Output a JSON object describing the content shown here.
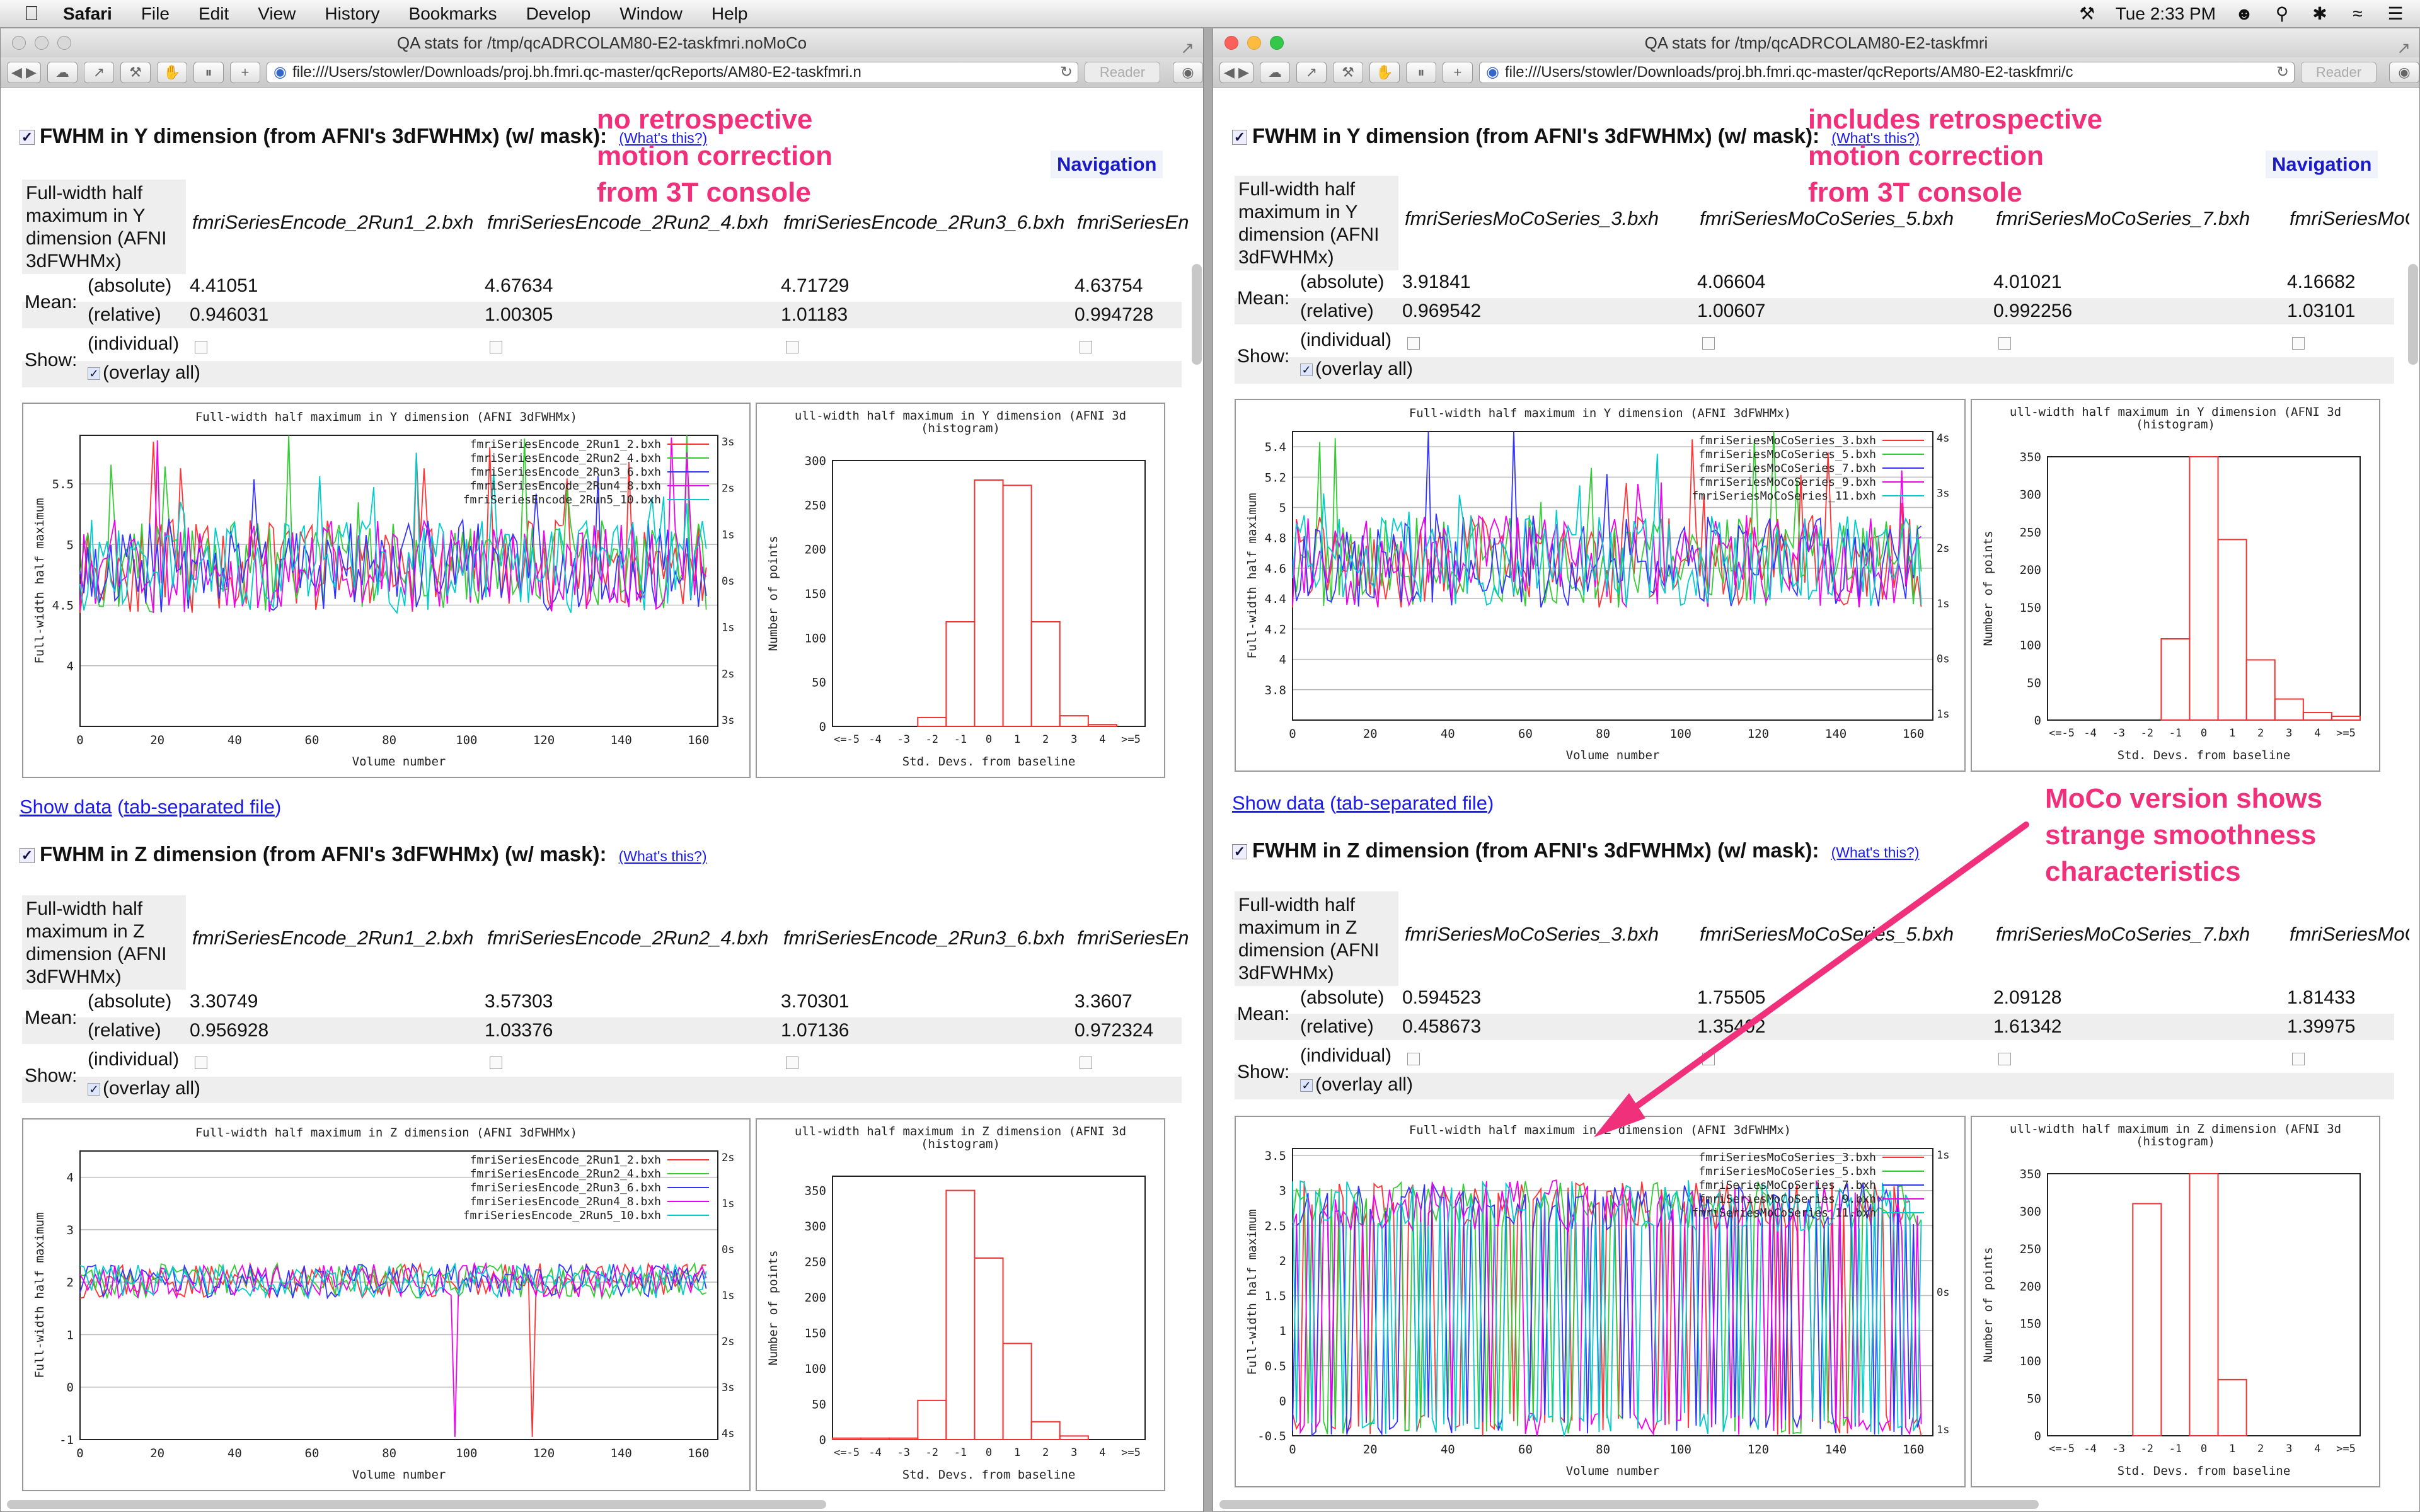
{
  "menubar": {
    "app": "Safari",
    "items": [
      "File",
      "Edit",
      "View",
      "History",
      "Bookmarks",
      "Develop",
      "Window",
      "Help"
    ],
    "clock": "Tue 2:33 PM"
  },
  "left": {
    "title_prefix": "QA stats for /tmp/qcADRCOL",
    "title_highlight": "AM80-E2-taskfmri.noMoCo",
    "url": "file:///Users/stowler/Downloads/proj.bh.fmri.qc-master/qcReports/AM80-E2-taskfmri.n",
    "reader": "Reader",
    "navigation": "Navigation",
    "annotation": [
      "no retrospective",
      "motion correction",
      "from 3T console"
    ],
    "y_head": "FWHM in Y dimension (from AFNI's 3dFWHMx) (w/ mask):",
    "z_head": "FWHM in Z dimension (from AFNI's 3dFWHMx) (w/ mask):",
    "whats_this": "(What's this?)",
    "y_label": [
      "Full-width half",
      "maximum in Y",
      "dimension (AFNI",
      "3dFWHMx)"
    ],
    "z_label": [
      "Full-width half",
      "maximum in Z",
      "dimension (AFNI",
      "3dFWHMx)"
    ],
    "files": [
      "fmriSeriesEncode_2Run1_2.bxh",
      "fmriSeriesEncode_2Run2_4.bxh",
      "fmriSeriesEncode_2Run3_6.bxh",
      "fmriSeriesEn"
    ],
    "y_abs": [
      "4.41051",
      "4.67634",
      "4.71729",
      "4.63754"
    ],
    "y_rel": [
      "0.946031",
      "1.00305",
      "1.01183",
      "0.994728"
    ],
    "z_abs": [
      "3.30749",
      "3.57303",
      "3.70301",
      "3.3607"
    ],
    "z_rel": [
      "0.956928",
      "1.03376",
      "1.07136",
      "0.972324"
    ],
    "show_data": "Show data",
    "tsv": "tab-separated file",
    "legend": [
      "fmriSeriesEncode_2Run1_2.bxh",
      "fmriSeriesEncode_2Run2_4.bxh",
      "fmriSeriesEncode_2Run3_6.bxh",
      "fmriSeriesEncode_2Run4_8.bxh",
      "fmriSeriesEncode_2Run5_10.bxh"
    ]
  },
  "right": {
    "title_prefix": "QA stats for /tmp/qcADRCOL",
    "title_highlight": "AM80-E2-taskfmri",
    "url": "file:///Users/stowler/Downloads/proj.bh.fmri.qc-master/qcReports/AM80-E2-taskfmri/c",
    "reader": "Reader",
    "navigation": "Navigation",
    "annotation": [
      "includes retrospective",
      "motion correction",
      "from 3T console"
    ],
    "annotation2": [
      "MoCo version shows",
      "strange smoothness",
      "characteristics"
    ],
    "y_head": "FWHM in Y dimension (from AFNI's 3dFWHMx) (w/ mask):",
    "z_head": "FWHM in Z dimension (from AFNI's 3dFWHMx) (w/ mask):",
    "whats_this": "(What's this?)",
    "y_label": [
      "Full-width half",
      "maximum in Y",
      "dimension (AFNI",
      "3dFWHMx)"
    ],
    "z_label": [
      "Full-width half",
      "maximum in Z",
      "dimension (AFNI",
      "3dFWHMx)"
    ],
    "files": [
      "fmriSeriesMoCoSeries_3.bxh",
      "fmriSeriesMoCoSeries_5.bxh",
      "fmriSeriesMoCoSeries_7.bxh",
      "fmriSeriesMoCoSerie"
    ],
    "y_abs": [
      "3.91841",
      "4.06604",
      "4.01021",
      "4.16682"
    ],
    "y_rel": [
      "0.969542",
      "1.00607",
      "0.992256",
      "1.03101"
    ],
    "z_abs": [
      "0.594523",
      "1.75505",
      "2.09128",
      "1.81433"
    ],
    "z_rel": [
      "0.458673",
      "1.35402",
      "1.61342",
      "1.39975"
    ],
    "show_data": "Show data",
    "tsv": "tab-separated file",
    "legend": [
      "fmriSeriesMoCoSeries_3.bxh",
      "fmriSeriesMoCoSeries_5.bxh",
      "fmriSeriesMoCoSeries_7.bxh",
      "fmriSeriesMoCoSeries_9.bxh",
      "fmriSeriesMoCoSeries_11.bxh"
    ]
  },
  "table_labels": {
    "mean": "Mean:",
    "absolute": "(absolute)",
    "relative": "(relative)",
    "show": "Show:",
    "individual": "(individual)",
    "overlay": "(overlay all)"
  },
  "series_colors": [
    "#ff3333",
    "#33cc33",
    "#3333ff",
    "#ee00ee",
    "#00cccc"
  ],
  "chart_data": [
    {
      "type": "line",
      "panel": "left-y",
      "title": "Full-width half maximum in Y dimension (AFNI 3dFWHMx)",
      "xlabel": "Volume number",
      "ylabel": "Full-width half maximum",
      "xlim": [
        0,
        165
      ],
      "ylim": [
        3.5,
        5.9
      ],
      "yticks": [
        4,
        4.5,
        5,
        5.5
      ],
      "xticks": [
        0,
        20,
        40,
        60,
        80,
        100,
        120,
        140,
        160
      ],
      "right_ticks": [
        "3s",
        "2s",
        "1s",
        "0s",
        "1s",
        "2s",
        "3s"
      ]
    },
    {
      "type": "bar",
      "panel": "left-y-hist",
      "title": "ull-width half maximum in Y dimension (AFNI 3d",
      "subtitle": "(histogram)",
      "xlabel": "Std. Devs. from baseline",
      "ylabel": "Number of points",
      "categories": [
        "<=-5",
        "-4",
        "-3",
        "-2",
        "-1",
        "0",
        "1",
        "2",
        "3",
        "4",
        ">=5"
      ],
      "values": [
        0,
        0,
        0,
        10,
        118,
        278,
        272,
        118,
        12,
        2,
        0
      ],
      "ylim": [
        0,
        300
      ],
      "yticks": [
        0,
        50,
        100,
        150,
        200,
        250,
        300
      ]
    },
    {
      "type": "line",
      "panel": "left-z",
      "title": "Full-width half maximum in Z dimension (AFNI 3dFWHMx)",
      "xlabel": "Volume number",
      "ylabel": "Full-width half maximum",
      "xlim": [
        0,
        165
      ],
      "ylim": [
        -1,
        4.5
      ],
      "yticks": [
        -1,
        0,
        1,
        2,
        3,
        4
      ],
      "xticks": [
        0,
        20,
        40,
        60,
        80,
        100,
        120,
        140,
        160
      ],
      "right_ticks": [
        "2s",
        "1s",
        "0s",
        "1s",
        "2s",
        "3s",
        "4s"
      ]
    },
    {
      "type": "bar",
      "panel": "left-z-hist",
      "title": "ull-width half maximum in Z dimension (AFNI 3d",
      "subtitle": "(histogram)",
      "xlabel": "Std. Devs. from baseline",
      "ylabel": "Number of points",
      "categories": [
        "<=-5",
        "-4",
        "-3",
        "-2",
        "-1",
        "0",
        "1",
        "2",
        "3",
        "4",
        ">=5"
      ],
      "values": [
        2,
        2,
        2,
        55,
        350,
        255,
        135,
        25,
        5,
        0,
        0
      ],
      "ylim": [
        0,
        370
      ],
      "yticks": [
        0,
        50,
        100,
        150,
        200,
        250,
        300,
        350
      ]
    },
    {
      "type": "line",
      "panel": "right-y",
      "title": "Full-width half maximum in Y dimension (AFNI 3dFWHMx)",
      "xlabel": "Volume number",
      "ylabel": "Full-width half maximum",
      "xlim": [
        0,
        165
      ],
      "ylim": [
        3.6,
        5.5
      ],
      "yticks": [
        3.8,
        4,
        4.2,
        4.4,
        4.6,
        4.8,
        5,
        5.2,
        5.4
      ],
      "xticks": [
        0,
        20,
        40,
        60,
        80,
        100,
        120,
        140,
        160
      ],
      "right_ticks": [
        "4s",
        "3s",
        "2s",
        "1s",
        "0s",
        "1s"
      ]
    },
    {
      "type": "bar",
      "panel": "right-y-hist",
      "title": "ull-width half maximum in Y dimension (AFNI 3d",
      "subtitle": "(histogram)",
      "xlabel": "Std. Devs. from baseline",
      "ylabel": "Number of points",
      "categories": [
        "<=-5",
        "-4",
        "-3",
        "-2",
        "-1",
        "0",
        "1",
        "2",
        "3",
        "4",
        ">=5"
      ],
      "values": [
        0,
        0,
        0,
        0,
        108,
        350,
        240,
        80,
        28,
        10,
        5
      ],
      "ylim": [
        0,
        350
      ],
      "yticks": [
        0,
        50,
        100,
        150,
        200,
        250,
        300,
        350
      ]
    },
    {
      "type": "line",
      "panel": "right-z",
      "title": "Full-width half maximum in Z dimension (AFNI 3dFWHMx)",
      "xlabel": "Volume number",
      "ylabel": "Full-width half maximum",
      "xlim": [
        0,
        165
      ],
      "ylim": [
        -0.5,
        3.6
      ],
      "yticks": [
        -0.5,
        0,
        0.5,
        1,
        1.5,
        2,
        2.5,
        3,
        3.5
      ],
      "xticks": [
        0,
        20,
        40,
        60,
        80,
        100,
        120,
        140,
        160
      ],
      "right_ticks": [
        "1s",
        "0s",
        "1s"
      ]
    },
    {
      "type": "bar",
      "panel": "right-z-hist",
      "title": "ull-width half maximum in Z dimension (AFNI 3d",
      "subtitle": "(histogram)",
      "xlabel": "Std. Devs. from baseline",
      "ylabel": "Number of points",
      "categories": [
        "<=-5",
        "-4",
        "-3",
        "-2",
        "-1",
        "0",
        "1",
        "2",
        "3",
        "4",
        ">=5"
      ],
      "values": [
        0,
        0,
        0,
        310,
        0,
        350,
        75,
        0,
        0,
        0,
        0
      ],
      "ylim": [
        0,
        350
      ],
      "yticks": [
        0,
        50,
        100,
        150,
        200,
        250,
        300,
        350
      ]
    }
  ]
}
